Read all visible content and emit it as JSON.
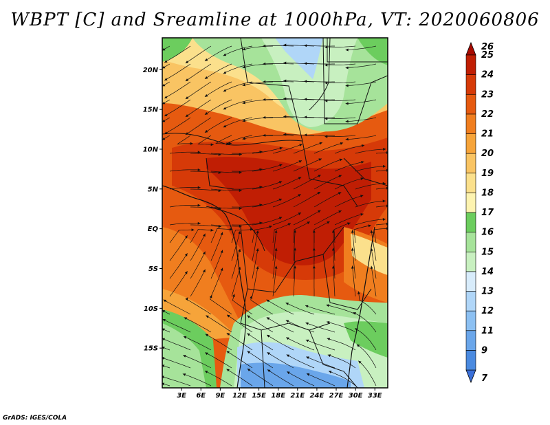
{
  "title": "WBPT [C] and Sreamline at 1000hPa, VT: 2020060806",
  "credit": "GrADS: IGES/COLA",
  "map": {
    "lon_range": [
      0,
      35
    ],
    "lat_range": [
      -20,
      24
    ],
    "lat_labels": [
      "20N",
      "15N",
      "10N",
      "5N",
      "EQ",
      "5S",
      "10S",
      "15S"
    ],
    "lat_values": [
      20,
      15,
      10,
      5,
      0,
      -5,
      -10,
      -15
    ],
    "lon_labels": [
      "3E",
      "6E",
      "9E",
      "12E",
      "15E",
      "18E",
      "21E",
      "24E",
      "27E",
      "30E",
      "33E"
    ],
    "lon_values": [
      3,
      6,
      9,
      12,
      15,
      18,
      21,
      24,
      27,
      30,
      33
    ]
  },
  "colorbar": {
    "labels": [
      "7",
      "9",
      "11",
      "12",
      "13",
      "14",
      "15",
      "16",
      "17",
      "18",
      "19",
      "20",
      "21",
      "22",
      "23",
      "24",
      "25",
      "26"
    ],
    "colors": [
      "#3a6fd8",
      "#4a8ae0",
      "#6aa6ea",
      "#8cc0f2",
      "#b0d6f8",
      "#d8ecfb",
      "#c8f0c0",
      "#a6e39a",
      "#6ccd5e",
      "#fdf3b0",
      "#fbe08c",
      "#f9c463",
      "#f6a43a",
      "#f07e1f",
      "#e65a10",
      "#d63a08",
      "#c01e04",
      "#a80a00"
    ]
  }
}
